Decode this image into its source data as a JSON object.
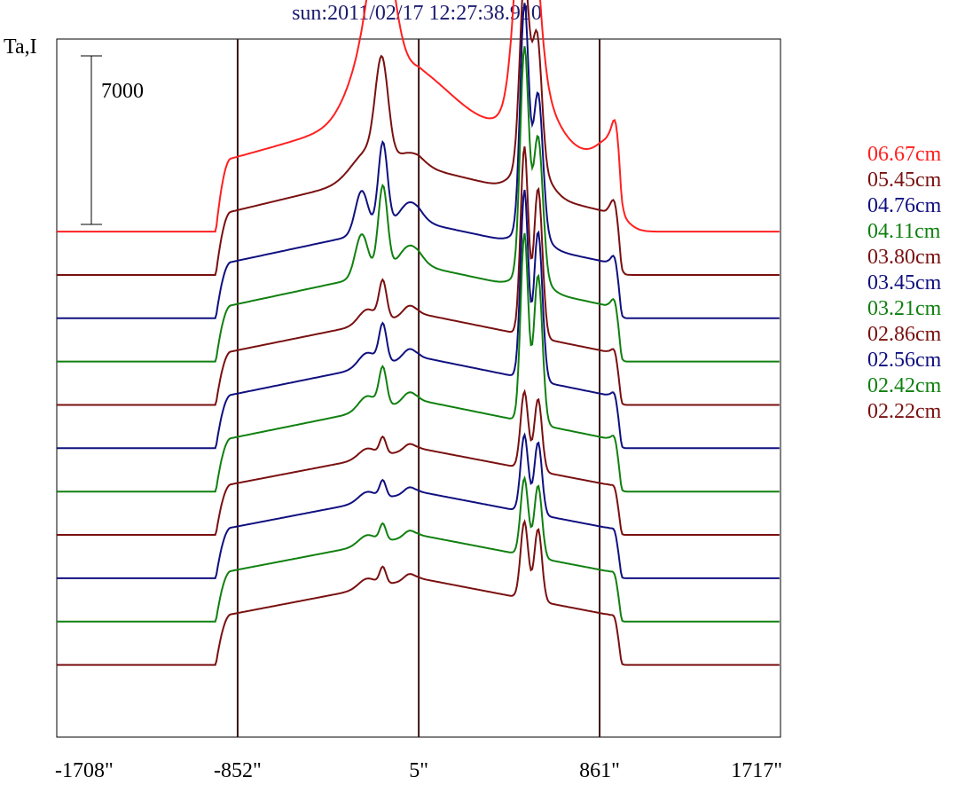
{
  "title": "sun:2011/02/17 12:27:38.910",
  "chart_data": {
    "type": "line",
    "title": "sun:2011/02/17 12:27:38.910",
    "ylabel": "Ta,I",
    "xlabel": "",
    "x_ticks": [
      "-1708\"",
      "-852\"",
      "5\"",
      "861\"",
      "1717\""
    ],
    "x_tick_values": [
      -1708,
      -852,
      5,
      861,
      1717
    ],
    "xlim": [
      -1708,
      1717
    ],
    "scale_bar": {
      "label": "7000",
      "value": 7000
    },
    "vertical_lines": [
      -852,
      5,
      861
    ],
    "legend_placement": "right",
    "series": [
      {
        "name": "06.67cm",
        "color": "#ff2020",
        "baseline": 21000,
        "profile": "a"
      },
      {
        "name": "05.45cm",
        "color": "#7a1010",
        "baseline": 19200,
        "profile": "b"
      },
      {
        "name": "04.76cm",
        "color": "#101080",
        "baseline": 17400,
        "profile": "c"
      },
      {
        "name": "04.11cm",
        "color": "#108010",
        "baseline": 15600,
        "profile": "c"
      },
      {
        "name": "03.80cm",
        "color": "#7a1010",
        "baseline": 13800,
        "profile": "d"
      },
      {
        "name": "03.45cm",
        "color": "#101080",
        "baseline": 12000,
        "profile": "d"
      },
      {
        "name": "03.21cm",
        "color": "#108010",
        "baseline": 10200,
        "profile": "d"
      },
      {
        "name": "02.86cm",
        "color": "#7a1010",
        "baseline": 8400,
        "profile": "e"
      },
      {
        "name": "02.56cm",
        "color": "#101080",
        "baseline": 6600,
        "profile": "e"
      },
      {
        "name": "02.42cm",
        "color": "#108010",
        "baseline": 4800,
        "profile": "e"
      },
      {
        "name": "02.22cm",
        "color": "#7a1010",
        "baseline": 3000,
        "profile": "e"
      }
    ]
  }
}
